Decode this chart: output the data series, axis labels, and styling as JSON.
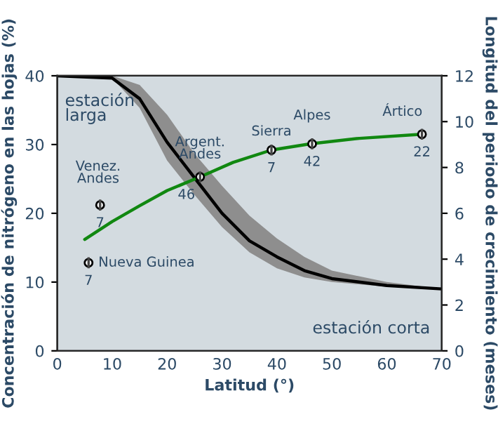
{
  "chart_data": {
    "type": "line",
    "xlabel": "Latitud (°)",
    "ylabel": "Concentración de nitrógeno en las hojas (%)",
    "y2label": "Longitud del periodo de crecimiento (meses)",
    "xlim": [
      0,
      70
    ],
    "xticks": [
      0,
      10,
      20,
      30,
      40,
      50,
      60,
      70
    ],
    "ylim": [
      0,
      40
    ],
    "yticks": [
      0,
      10,
      20,
      30,
      40
    ],
    "y2lim": [
      0,
      12
    ],
    "y2ticks": [
      0,
      2,
      4,
      6,
      8,
      10,
      12
    ],
    "grid": false,
    "legend": false,
    "series": [
      {
        "axis": "y2",
        "color": "#000000",
        "x": [
          0,
          10,
          15,
          20,
          25,
          30,
          35,
          40,
          45,
          50,
          60,
          70
        ],
        "values": [
          12,
          11.9,
          11.0,
          9.1,
          7.55,
          6.0,
          4.8,
          4.1,
          3.5,
          3.15,
          2.85,
          2.7
        ],
        "lower": [
          12,
          11.9,
          10.6,
          8.3,
          6.8,
          5.4,
          4.3,
          3.6,
          3.2,
          3.0,
          2.8,
          2.7
        ],
        "upper": [
          12,
          12,
          11.6,
          10.3,
          8.6,
          7.2,
          5.9,
          4.9,
          4.1,
          3.5,
          3.0,
          2.7
        ]
      },
      {
        "axis": "y",
        "color": "#118811",
        "x": [
          5,
          10,
          15,
          20,
          26,
          32,
          39,
          46,
          55,
          66.4
        ],
        "values": [
          16.2,
          18.8,
          21.1,
          23.3,
          25.3,
          27.4,
          29.2,
          30.1,
          30.9,
          31.5
        ]
      },
      {
        "type": "scatter",
        "axis": "y",
        "color": "#000000",
        "marker": "circle",
        "x": [
          7.8,
          5.7,
          26,
          39,
          46.4,
          66.4
        ],
        "values": [
          21.2,
          12.8,
          25.3,
          29.2,
          30.1,
          31.5
        ],
        "errors": [
          0.8,
          0.8,
          0.8,
          0.8,
          0.8,
          0.8
        ]
      }
    ],
    "annotations": [
      "estación\nlarga",
      "estación corta",
      {
        "text": "Venez.\nAndes",
        "x": 7.8,
        "y": 21.2
      },
      {
        "text": "7",
        "x": 7.8,
        "y": 21.2
      },
      {
        "text": "Nueva Guinea",
        "x": 5.7,
        "y": 12.8
      },
      {
        "text": "7",
        "x": 5.7,
        "y": 12.8
      },
      {
        "text": "Argent.\nAndes",
        "x": 26,
        "y": 25.3
      },
      {
        "text": "46",
        "x": 26,
        "y": 25.3
      },
      {
        "text": "Sierra",
        "x": 39,
        "y": 29.2
      },
      {
        "text": "7",
        "x": 39,
        "y": 29.2
      },
      {
        "text": "Alpes",
        "x": 46.4,
        "y": 30.1
      },
      {
        "text": "42",
        "x": 46.4,
        "y": 30.1
      },
      {
        "text": "Ártico",
        "x": 66.4,
        "y": 31.5
      },
      {
        "text": "22",
        "x": 66.4,
        "y": 31.5
      }
    ]
  }
}
